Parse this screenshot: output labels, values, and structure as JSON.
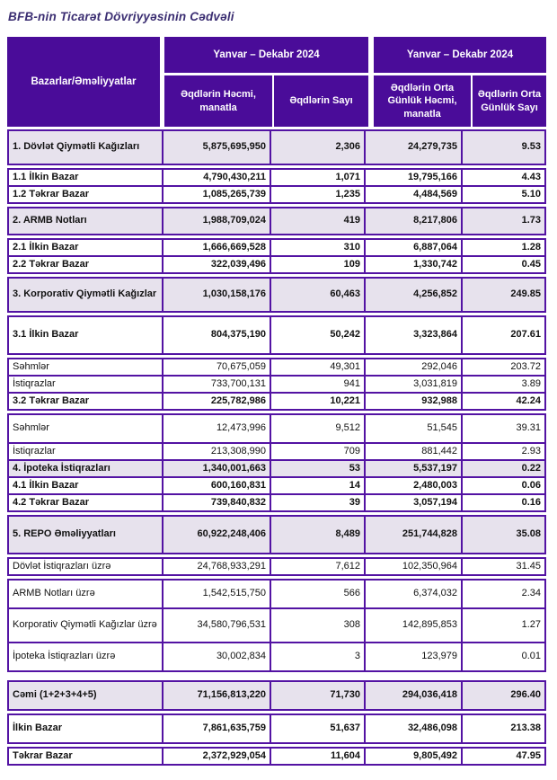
{
  "title": "BFB-nin Ticarət Dövriyyəsinin Cədvəli",
  "colors": {
    "header_bg": "#4A0C99",
    "border": "#5313A3",
    "shaded_row_bg": "#E7E2ED",
    "title_color": "#3B2E72",
    "header_text": "#FFFFFF"
  },
  "table": {
    "corner_header": "Bazarlar/Əməliyyatlar",
    "group_headers": [
      "Yanvar –  Dekabr 2024",
      "Yanvar – Dekabr 2024"
    ],
    "column_headers": [
      "Əqdlərin Həcmi, manatla",
      "Əqdlərin Sayı",
      "Əqdlərin Orta Günlük Həcmi, manatla",
      "Əqdlərin Orta Günlük Sayı"
    ],
    "rows": [
      {
        "label": "1. Dövlət Qiymətli Kağızları",
        "values": [
          "5,875,695,950",
          "2,306",
          "24,279,735",
          "9.53"
        ],
        "bold": true,
        "shaded": true,
        "size": "lg",
        "gap": null
      },
      {
        "label": "1.1 İlkin Bazar",
        "values": [
          "4,790,430,211",
          "1,071",
          "19,795,166",
          "4.43"
        ],
        "bold": true,
        "shaded": false,
        "size": "sm",
        "gap": "sm"
      },
      {
        "label": "1.2 Təkrar Bazar",
        "values": [
          "1,085,265,739",
          "1,235",
          "4,484,569",
          "5.10"
        ],
        "bold": true,
        "shaded": false,
        "size": "sm",
        "gap": null
      },
      {
        "label": "2. ARMB Notları",
        "values": [
          "1,988,709,024",
          "419",
          "8,217,806",
          "1.73"
        ],
        "bold": true,
        "shaded": true,
        "size": "md",
        "gap": "sm"
      },
      {
        "label": "2.1 İlkin Bazar",
        "values": [
          "1,666,669,528",
          "310",
          "6,887,064",
          "1.28"
        ],
        "bold": true,
        "shaded": false,
        "size": "sm",
        "gap": "sm"
      },
      {
        "label": "2.2 Təkrar Bazar",
        "values": [
          "322,039,496",
          "109",
          "1,330,742",
          "0.45"
        ],
        "bold": true,
        "shaded": false,
        "size": "sm",
        "gap": null
      },
      {
        "label": "3. Korporativ Qiymətli Kağızlar",
        "values": [
          "1,030,158,176",
          "60,463",
          "4,256,852",
          "249.85"
        ],
        "bold": true,
        "shaded": true,
        "size": "lg",
        "gap": "sm"
      },
      {
        "label": "3.1 İlkin Bazar",
        "values": [
          "804,375,190",
          "50,242",
          "3,323,864",
          "207.61"
        ],
        "bold": true,
        "shaded": false,
        "size": "xl",
        "gap": "sm"
      },
      {
        "label": "Səhmlər",
        "values": [
          "70,675,059",
          "49,301",
          "292,046",
          "203.72"
        ],
        "bold": false,
        "shaded": false,
        "size": "sm",
        "gap": "sm"
      },
      {
        "label": "İstiqrazlar",
        "values": [
          "733,700,131",
          "941",
          "3,031,819",
          "3.89"
        ],
        "bold": false,
        "shaded": false,
        "size": "sm",
        "gap": null
      },
      {
        "label": "3.2 Təkrar Bazar",
        "values": [
          "225,782,986",
          "10,221",
          "932,988",
          "42.24"
        ],
        "bold": true,
        "shaded": false,
        "size": "sm",
        "gap": null
      },
      {
        "label": "Səhmlər",
        "values": [
          "12,473,996",
          "9,512",
          "51,545",
          "39.31"
        ],
        "bold": false,
        "shaded": false,
        "size": "tl",
        "gap": "sm"
      },
      {
        "label": "İstiqrazlar",
        "values": [
          "213,308,990",
          "709",
          "881,442",
          "2.93"
        ],
        "bold": false,
        "shaded": false,
        "size": "sm",
        "gap": null
      },
      {
        "label": "4. İpoteka İstiqrazları",
        "values": [
          "1,340,001,663",
          "53",
          "5,537,197",
          "0.22"
        ],
        "bold": true,
        "shaded": true,
        "size": "sm",
        "gap": null
      },
      {
        "label": "4.1 İlkin Bazar",
        "values": [
          "600,160,831",
          "14",
          "2,480,003",
          "0.06"
        ],
        "bold": true,
        "shaded": false,
        "size": "sm",
        "gap": null
      },
      {
        "label": "4.2 Təkrar Bazar",
        "values": [
          "739,840,832",
          "39",
          "3,057,194",
          "0.16"
        ],
        "bold": true,
        "shaded": false,
        "size": "sm",
        "gap": null
      },
      {
        "label": "5. REPO Əməliyyatları",
        "values": [
          "60,922,248,406",
          "8,489",
          "251,744,828",
          "35.08"
        ],
        "bold": true,
        "shaded": true,
        "size": "xl",
        "gap": "sm"
      },
      {
        "label": "Dövlət İstiqrazları üzrə",
        "values": [
          "24,768,933,291",
          "7,612",
          "102,350,964",
          "31.45"
        ],
        "bold": false,
        "shaded": false,
        "size": "sm",
        "gap": "sm"
      },
      {
        "label": "ARMB Notları üzrə",
        "values": [
          "1,542,515,750",
          "566",
          "6,374,032",
          "2.34"
        ],
        "bold": false,
        "shaded": false,
        "size": "tl",
        "gap": "sm"
      },
      {
        "label": "Korporativ Qiymətli Kağızlar üzrə",
        "values": [
          "34,580,796,531",
          "308",
          "142,895,853",
          "1.27"
        ],
        "bold": false,
        "shaded": false,
        "size": "lg",
        "gap": null
      },
      {
        "label": "İpoteka İstiqrazları üzrə",
        "values": [
          "30,002,834",
          "3",
          "123,979",
          "0.01"
        ],
        "bold": false,
        "shaded": false,
        "size": "tl",
        "gap": null
      },
      {
        "label": "Cəmi (1+2+3+4+5)",
        "values": [
          "71,156,813,220",
          "71,730",
          "294,036,418",
          "296.40"
        ],
        "bold": true,
        "shaded": true,
        "size": "tl",
        "gap": "lg"
      },
      {
        "label": "İlkin Bazar",
        "values": [
          "7,861,635,759",
          "51,637",
          "32,486,098",
          "213.38"
        ],
        "bold": true,
        "shaded": false,
        "size": "tl",
        "gap": "sm"
      },
      {
        "label": "Təkrar Bazar",
        "values": [
          "2,372,929,054",
          "11,604",
          "9,805,492",
          "47.95"
        ],
        "bold": true,
        "shaded": false,
        "size": "sm",
        "gap": "sm"
      }
    ]
  }
}
